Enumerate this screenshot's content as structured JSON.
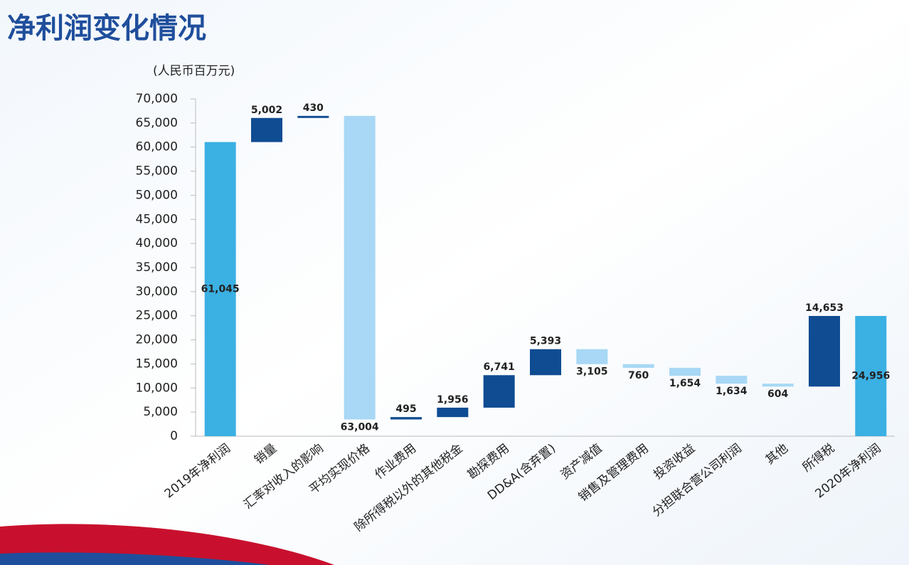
{
  "chart_data": {
    "type": "waterfall",
    "title": "净利润变化情况",
    "y_label": "(人民币百万元)",
    "categories": [
      "2019年净利润",
      "销量",
      "汇率对收入的影响",
      "平均实现价格",
      "作业费用",
      "除所得税以外的其他税金",
      "勘探费用",
      "DD&A(含弃置)",
      "资产减值",
      "销售及管理费用",
      "投资收益",
      "分担联合营公司利润",
      "其他",
      "所得税",
      "2020年净利润"
    ],
    "values": [
      61045,
      5002,
      430,
      63004,
      495,
      1956,
      6741,
      5393,
      3105,
      760,
      1654,
      1634,
      604,
      14653,
      24956
    ],
    "value_labels": [
      "61,045",
      "5,002",
      "430",
      "63,004",
      "495",
      "1,956",
      "6,741",
      "5,393",
      "3,105",
      "760",
      "1,654",
      "1,634",
      "604",
      "14,653",
      "24,956"
    ],
    "directions": [
      "total",
      "up",
      "up",
      "down",
      "up",
      "up",
      "up",
      "up",
      "down",
      "down",
      "down",
      "down",
      "down",
      "up",
      "total"
    ],
    "colors": {
      "total": "#3bb0e3",
      "up": "#0f4c92",
      "down": "#a8d8f5"
    },
    "ylim": [
      0,
      70000
    ],
    "yticks": [
      {
        "value": 0,
        "label": "0"
      },
      {
        "value": 5000,
        "label": "5,000"
      },
      {
        "value": 10000,
        "label": "10,000"
      },
      {
        "value": 15000,
        "label": "15,000"
      },
      {
        "value": 20000,
        "label": "20,000"
      },
      {
        "value": 25000,
        "label": "25,000"
      },
      {
        "value": 30000,
        "label": "30,000"
      },
      {
        "value": 35000,
        "label": "35,000"
      },
      {
        "value": 40000,
        "label": "40,000"
      },
      {
        "value": 45000,
        "label": "45,000"
      },
      {
        "value": 50000,
        "label": "50,000"
      },
      {
        "value": 55000,
        "label": "55,000"
      },
      {
        "value": 60000,
        "label": "60,000"
      },
      {
        "value": 65000,
        "label": "65,000"
      },
      {
        "value": 70000,
        "label": "70,000"
      }
    ]
  }
}
